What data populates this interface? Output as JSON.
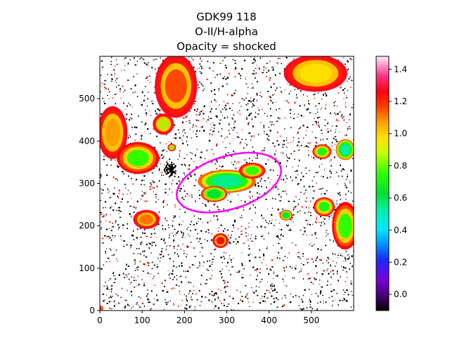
{
  "title_lines": [
    "GDK99 118",
    "O-II/H-alpha",
    "Opacity = shocked"
  ],
  "chart_data": {
    "type": "heatmap",
    "title": "GDK99 118\nO-II/H-alpha\nOpacity = shocked",
    "xlim": [
      0,
      600
    ],
    "ylim": [
      0,
      600
    ],
    "x_ticks": [
      0,
      100,
      200,
      300,
      400,
      500
    ],
    "y_ticks": [
      0,
      100,
      200,
      300,
      400,
      500
    ],
    "x_tick_labels": [
      "0",
      "100",
      "200",
      "300",
      "400",
      "500"
    ],
    "y_tick_labels": [
      "0",
      "100",
      "200",
      "300",
      "400",
      "500"
    ],
    "colorbar": {
      "colormap": "gist_ncar-like (purple-blue-cyan-green-yellow-orange-red-pink)",
      "range": [
        -0.1,
        1.48
      ],
      "ticks": [
        0.0,
        0.2,
        0.4,
        0.6,
        0.8,
        1.0,
        1.2,
        1.4
      ],
      "tick_labels": [
        "0.0",
        "0.2",
        "0.4",
        "0.6",
        "0.8",
        "1.0",
        "1.2",
        "1.4"
      ]
    },
    "ellipse": {
      "center": [
        305,
        302
      ],
      "width": 255,
      "height": 125,
      "angle_deg": 17,
      "color": "#ff00ff"
    },
    "background_color": "#ffffff",
    "regions": [
      {
        "x": 300,
        "y": 305,
        "rx": 55,
        "ry": 22,
        "value": 0.32
      },
      {
        "x": 270,
        "y": 275,
        "rx": 25,
        "ry": 15,
        "value": 0.4
      },
      {
        "x": 360,
        "y": 330,
        "rx": 25,
        "ry": 15,
        "value": 0.55
      },
      {
        "x": 180,
        "y": 530,
        "rx": 40,
        "ry": 60,
        "value": 0.9
      },
      {
        "x": 30,
        "y": 420,
        "rx": 28,
        "ry": 50,
        "value": 0.8
      },
      {
        "x": 90,
        "y": 360,
        "rx": 40,
        "ry": 30,
        "value": 0.55
      },
      {
        "x": 150,
        "y": 440,
        "rx": 20,
        "ry": 20,
        "value": 0.65
      },
      {
        "x": 510,
        "y": 560,
        "rx": 60,
        "ry": 35,
        "value": 0.7
      },
      {
        "x": 580,
        "y": 380,
        "rx": 18,
        "ry": 20,
        "value": 0.3
      },
      {
        "x": 525,
        "y": 375,
        "rx": 18,
        "ry": 14,
        "value": 0.5
      },
      {
        "x": 530,
        "y": 245,
        "rx": 20,
        "ry": 18,
        "value": 0.5
      },
      {
        "x": 580,
        "y": 200,
        "rx": 25,
        "ry": 45,
        "value": 0.55
      },
      {
        "x": 440,
        "y": 225,
        "rx": 12,
        "ry": 10,
        "value": 0.4
      },
      {
        "x": 110,
        "y": 215,
        "rx": 25,
        "ry": 18,
        "value": 0.85
      },
      {
        "x": 285,
        "y": 165,
        "rx": 15,
        "ry": 14,
        "value": 1.05
      },
      {
        "x": 170,
        "y": 385,
        "rx": 8,
        "ry": 7,
        "value": 0.6
      },
      {
        "x": 0,
        "y": 5,
        "rx": 6,
        "ry": 6,
        "value": 1.1
      }
    ]
  }
}
